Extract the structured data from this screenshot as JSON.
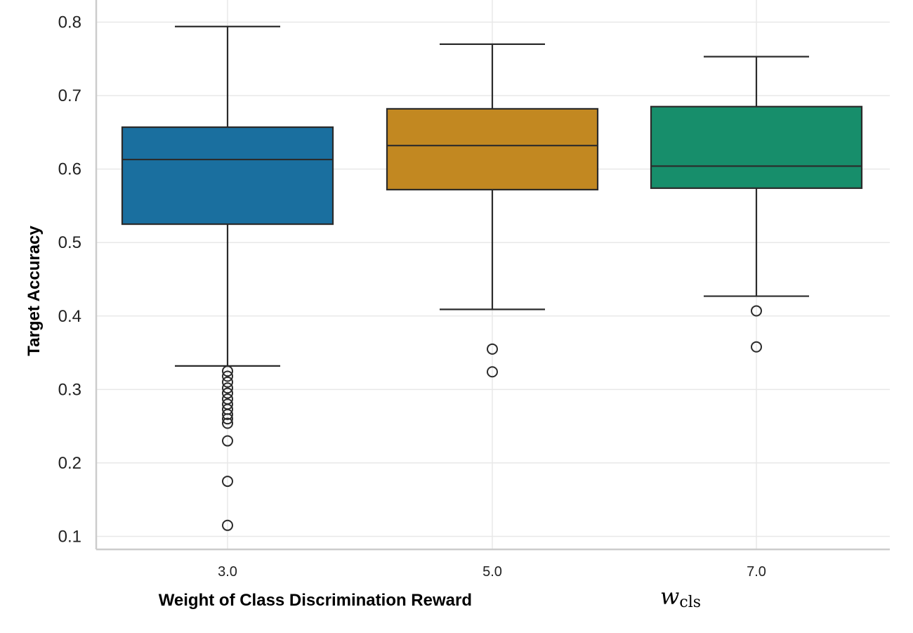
{
  "chart_data": {
    "type": "box",
    "title": "",
    "xlabel": "Weight of Class Discrimination Reward",
    "xlabel_symbol": "w",
    "xlabel_symbol_sub": "cls",
    "ylabel": "Target Accuracy",
    "ylim": [
      0.083,
      0.83
    ],
    "yticks": [
      0.1,
      0.2,
      0.3,
      0.4,
      0.5,
      0.6,
      0.7,
      0.8
    ],
    "ytick_labels": [
      "0.1",
      "0.2",
      "0.3",
      "0.4",
      "0.5",
      "0.6",
      "0.7",
      "0.8"
    ],
    "grid": true,
    "legend": "none",
    "categories": [
      "3.0",
      "5.0",
      "7.0"
    ],
    "boxes": [
      {
        "category": "3.0",
        "color": "#1a6f9f",
        "whisker_low": 0.332,
        "q1": 0.525,
        "median": 0.613,
        "q3": 0.657,
        "whisker_high": 0.794,
        "outliers": [
          0.325,
          0.318,
          0.31,
          0.302,
          0.295,
          0.287,
          0.28,
          0.273,
          0.266,
          0.26,
          0.254,
          0.23,
          0.175,
          0.115
        ]
      },
      {
        "category": "5.0",
        "color": "#c28821",
        "whisker_low": 0.409,
        "q1": 0.572,
        "median": 0.632,
        "q3": 0.682,
        "whisker_high": 0.77,
        "outliers": [
          0.355,
          0.324
        ]
      },
      {
        "category": "7.0",
        "color": "#178e6b",
        "whisker_low": 0.427,
        "q1": 0.574,
        "median": 0.604,
        "q3": 0.685,
        "whisker_high": 0.753,
        "outliers": [
          0.407,
          0.358
        ]
      }
    ]
  }
}
